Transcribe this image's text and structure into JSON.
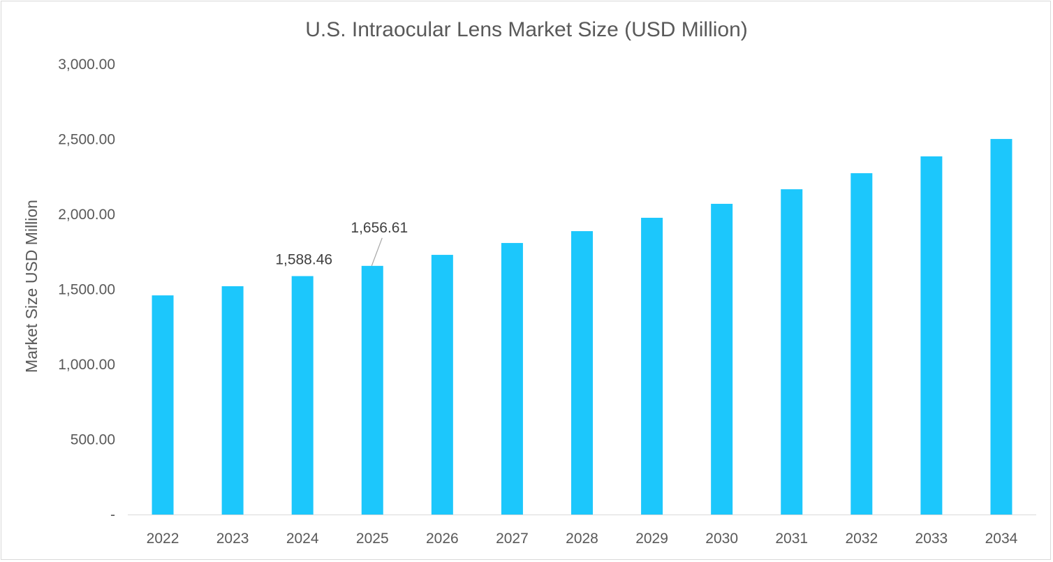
{
  "chart_data": {
    "type": "bar",
    "title": "U.S. Intraocular Lens Market Size (USD Million)",
    "xlabel": "",
    "ylabel": "Market Size USD Million",
    "categories": [
      "2022",
      "2023",
      "2024",
      "2025",
      "2026",
      "2027",
      "2028",
      "2029",
      "2030",
      "2031",
      "2032",
      "2033",
      "2034"
    ],
    "values": [
      1460,
      1521,
      1588.46,
      1656.61,
      1730,
      1809,
      1888,
      1977,
      2070,
      2167,
      2274,
      2386,
      2502
    ],
    "ylim": [
      0,
      3000
    ],
    "yticks": [
      0,
      500,
      1000,
      1500,
      2000,
      2500,
      3000
    ],
    "ytick_labels": [
      "-",
      "500.00",
      "1,000.00",
      "1,500.00",
      "2,000.00",
      "2,500.00",
      "3,000.00"
    ],
    "data_labels": [
      {
        "category": "2024",
        "text": "1,588.46"
      },
      {
        "category": "2025",
        "text": "1,656.61"
      }
    ],
    "bar_color": "#1CC7FC",
    "grid": false,
    "legend": "none"
  }
}
